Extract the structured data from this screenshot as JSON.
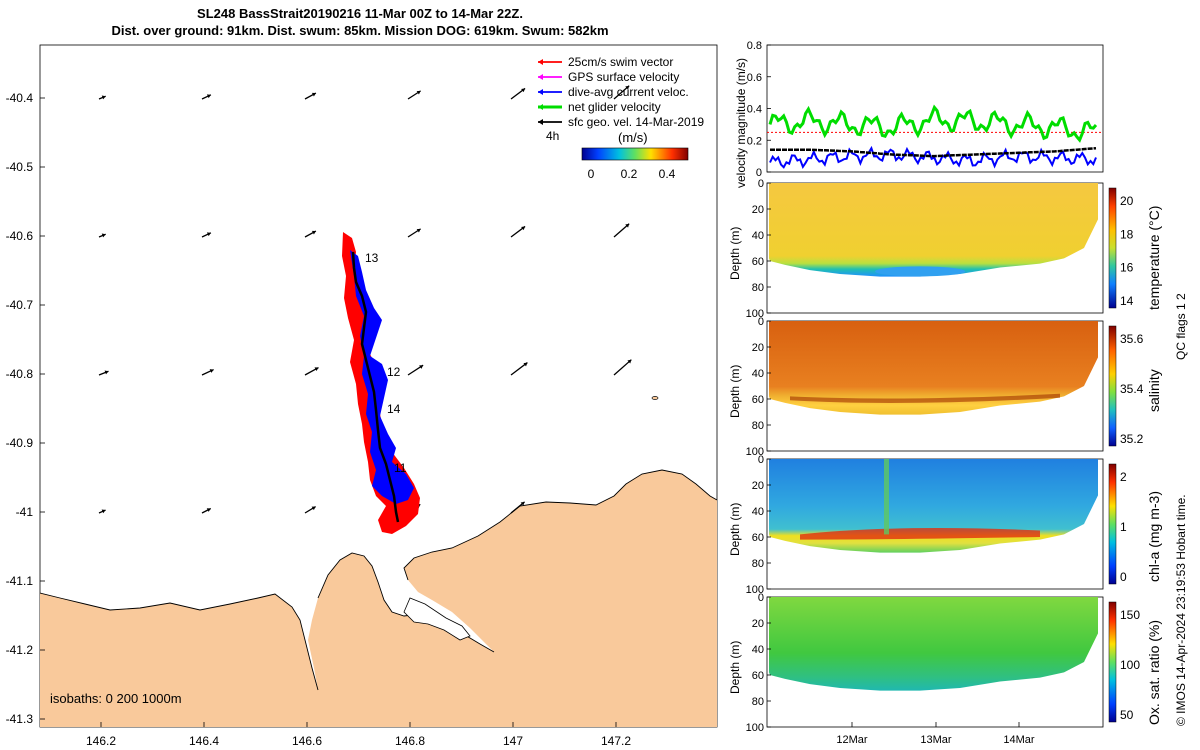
{
  "header": {
    "title_line1": "SL248 BassStrait20190216 11-Mar 00Z to 14-Mar 22Z.",
    "title_line2": "Dist. over ground: 91km. Dist. swum: 85km. Mission DOG: 619km. Swum: 582km"
  },
  "map": {
    "lat_ticks": [
      "-40.4",
      "-40.5",
      "-40.6",
      "-40.7",
      "-40.8",
      "-40.9",
      "-41",
      "-41.1",
      "-41.2",
      "-41.3"
    ],
    "lon_ticks": [
      "146.2",
      "146.4",
      "146.6",
      "146.8",
      "147",
      "147.2"
    ],
    "legend": [
      {
        "label": "25cm/s swim vector",
        "color": "#ff0000"
      },
      {
        "label": "GPS surface velocity",
        "color": "#ff00ff"
      },
      {
        "label": "dive-avg current veloc.",
        "color": "#0000ff"
      },
      {
        "label": "net glider velocity",
        "color": "#00dd00"
      },
      {
        "label": "sfc geo. vel. 14-Mar-2019",
        "color": "#000000"
      }
    ],
    "time_step_label": "4h",
    "colorbar_unit": "(m/s)",
    "colorbar_ticks": [
      "0",
      "0.2",
      "0.4"
    ],
    "isobaths_label": "isobaths: 0   200  1000m",
    "track_labels": [
      "13",
      "12",
      "14",
      "11"
    ],
    "land_color": "#f9c99b",
    "swim_color": "#ff0000",
    "current_color": "#0000ff"
  },
  "velocity_panel": {
    "ylabel": "velocity magnitude (m/s)",
    "yticks": [
      "0",
      "0.2",
      "0.4",
      "0.6",
      "0.8"
    ],
    "ylim": [
      0,
      0.8
    ],
    "reference_line_value": 0.25
  },
  "section_panels": [
    {
      "ylabel": "Depth (m)",
      "colorbar_label": "temperature (°C)",
      "colorbar_ticks": [
        "20",
        "18",
        "16",
        "14"
      ]
    },
    {
      "ylabel": "Depth (m)",
      "colorbar_label": "salinity",
      "colorbar_ticks": [
        "35.6",
        "35.4",
        "35.2"
      ]
    },
    {
      "ylabel": "Depth (m)",
      "colorbar_label": "chl-a (mg m-3)",
      "colorbar_ticks": [
        "2",
        "1",
        "0"
      ]
    },
    {
      "ylabel": "Depth (m)",
      "colorbar_label": "Ox. sat. ratio (%)",
      "colorbar_ticks": [
        "150",
        "100",
        "50"
      ]
    }
  ],
  "depth_ticks": [
    "0",
    "20",
    "40",
    "60",
    "80",
    "100"
  ],
  "time_ticks": [
    "12Mar",
    "13Mar",
    "14Mar"
  ],
  "footer": {
    "qc_label": "QC flags 1  2",
    "credit": "© IMOS 14-Apr-2024 23:19:53 Hobart time."
  },
  "chart_data": [
    {
      "type": "line",
      "ylabel": "velocity magnitude (m/s)",
      "ylim": [
        0,
        0.8
      ],
      "x": [
        "11-Mar 00Z",
        "11-Mar 12Z",
        "12-Mar 00Z",
        "12-Mar 12Z",
        "13-Mar 00Z",
        "13-Mar 12Z",
        "14-Mar 00Z",
        "14-Mar 12Z",
        "14-Mar 22Z"
      ],
      "series": [
        {
          "name": "net glider velocity",
          "color": "#00dd00",
          "values": [
            0.3,
            0.32,
            0.3,
            0.28,
            0.33,
            0.32,
            0.3,
            0.28,
            0.25
          ]
        },
        {
          "name": "dive-avg current veloc.",
          "color": "#0000ff",
          "values": [
            0.06,
            0.08,
            0.1,
            0.11,
            0.09,
            0.07,
            0.1,
            0.09,
            0.08
          ]
        },
        {
          "name": "sfc geo. vel. 14-Mar-2019",
          "color": "#000000",
          "values": [
            0.14,
            0.14,
            0.13,
            0.11,
            0.1,
            0.11,
            0.12,
            0.13,
            0.15
          ]
        }
      ]
    }
  ]
}
